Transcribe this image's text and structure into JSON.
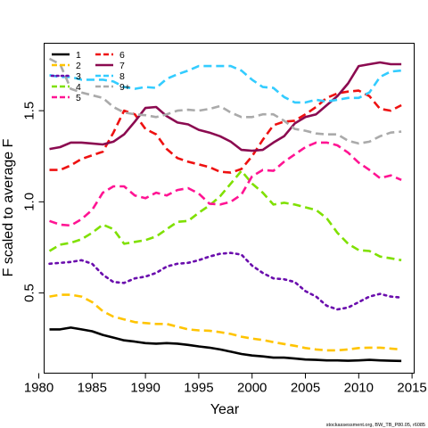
{
  "chart_data": {
    "type": "line",
    "xlabel": "Year",
    "ylabel": "F scaled to average F",
    "xlim": [
      1980.5,
      2015.2
    ],
    "ylim": [
      0.06,
      1.87
    ],
    "x_ticks": [
      1980,
      1985,
      1990,
      1995,
      2000,
      2005,
      2010,
      2015
    ],
    "y_ticks": [
      0.5,
      1.0,
      1.5
    ],
    "y_tick_labels": [
      "0.5",
      "1.0",
      "1.5"
    ],
    "legend_position": "top-left",
    "credit": "stockassessment.org, BW_TB_P80.05, r6085",
    "x": [
      1981,
      1982,
      1983,
      1984,
      1985,
      1986,
      1987,
      1988,
      1989,
      1990,
      1991,
      1992,
      1993,
      1994,
      1995,
      1996,
      1997,
      1998,
      1999,
      2000,
      2001,
      2002,
      2003,
      2004,
      2005,
      2006,
      2007,
      2008,
      2009,
      2010,
      2011,
      2012,
      2013,
      2014
    ],
    "series": [
      {
        "name": "1",
        "color": "#000000",
        "dash": "solid",
        "values": [
          0.3,
          0.3,
          0.31,
          0.3,
          0.29,
          0.27,
          0.255,
          0.24,
          0.233,
          0.225,
          0.222,
          0.225,
          0.222,
          0.215,
          0.207,
          0.2,
          0.19,
          0.178,
          0.165,
          0.157,
          0.152,
          0.145,
          0.145,
          0.14,
          0.135,
          0.133,
          0.13,
          0.13,
          0.128,
          0.13,
          0.133,
          0.13,
          0.128,
          0.127
        ]
      },
      {
        "name": "2",
        "color": "#FFC400",
        "dash": "dashed",
        "values": [
          0.48,
          0.49,
          0.49,
          0.48,
          0.45,
          0.4,
          0.37,
          0.355,
          0.34,
          0.335,
          0.33,
          0.33,
          0.315,
          0.3,
          0.295,
          0.293,
          0.285,
          0.275,
          0.26,
          0.25,
          0.242,
          0.23,
          0.22,
          0.21,
          0.198,
          0.19,
          0.185,
          0.185,
          0.19,
          0.198,
          0.2,
          0.2,
          0.195,
          0.19
        ]
      },
      {
        "name": "3",
        "color": "#6A0DAD",
        "dash": "dotted",
        "values": [
          0.66,
          0.665,
          0.67,
          0.68,
          0.66,
          0.6,
          0.56,
          0.555,
          0.58,
          0.59,
          0.61,
          0.645,
          0.66,
          0.665,
          0.68,
          0.7,
          0.715,
          0.72,
          0.71,
          0.65,
          0.61,
          0.58,
          0.575,
          0.56,
          0.51,
          0.48,
          0.43,
          0.41,
          0.42,
          0.45,
          0.48,
          0.495,
          0.48,
          0.475
        ]
      },
      {
        "name": "4",
        "color": "#7FE000",
        "dash": "dashed",
        "values": [
          0.73,
          0.765,
          0.775,
          0.795,
          0.83,
          0.875,
          0.85,
          0.77,
          0.78,
          0.79,
          0.81,
          0.85,
          0.89,
          0.895,
          0.94,
          0.98,
          1.03,
          1.1,
          1.17,
          1.1,
          1.05,
          0.985,
          0.995,
          0.985,
          0.97,
          0.955,
          0.91,
          0.83,
          0.77,
          0.735,
          0.73,
          0.7,
          0.69,
          0.68
        ]
      },
      {
        "name": "5",
        "color": "#FF1493",
        "dash": "dashed",
        "values": [
          0.895,
          0.875,
          0.87,
          0.905,
          0.955,
          1.05,
          1.085,
          1.085,
          1.035,
          1.02,
          1.05,
          1.035,
          1.065,
          1.075,
          1.045,
          0.99,
          0.985,
          1.0,
          1.04,
          1.14,
          1.175,
          1.17,
          1.22,
          1.26,
          1.3,
          1.325,
          1.325,
          1.31,
          1.27,
          1.215,
          1.175,
          1.13,
          1.145,
          1.12
        ]
      },
      {
        "name": "6",
        "color": "#EE1111",
        "dash": "dashed",
        "values": [
          1.175,
          1.175,
          1.2,
          1.235,
          1.255,
          1.275,
          1.38,
          1.5,
          1.48,
          1.4,
          1.37,
          1.29,
          1.24,
          1.22,
          1.205,
          1.19,
          1.165,
          1.16,
          1.18,
          1.25,
          1.34,
          1.42,
          1.44,
          1.445,
          1.48,
          1.52,
          1.57,
          1.595,
          1.605,
          1.61,
          1.58,
          1.51,
          1.5,
          1.53
        ]
      },
      {
        "name": "7",
        "color": "#8B0A50",
        "dash": "solid",
        "values": [
          1.29,
          1.3,
          1.325,
          1.325,
          1.32,
          1.315,
          1.33,
          1.37,
          1.44,
          1.515,
          1.52,
          1.47,
          1.435,
          1.425,
          1.395,
          1.38,
          1.36,
          1.33,
          1.285,
          1.28,
          1.285,
          1.325,
          1.36,
          1.43,
          1.465,
          1.48,
          1.53,
          1.58,
          1.65,
          1.745,
          1.755,
          1.765,
          1.755,
          1.755
        ]
      },
      {
        "name": "8",
        "color": "#33CCFF",
        "dash": "dashed",
        "values": [
          1.695,
          1.685,
          1.685,
          1.67,
          1.67,
          1.67,
          1.66,
          1.63,
          1.62,
          1.63,
          1.625,
          1.675,
          1.7,
          1.72,
          1.745,
          1.745,
          1.745,
          1.745,
          1.72,
          1.67,
          1.63,
          1.625,
          1.575,
          1.545,
          1.545,
          1.56,
          1.55,
          1.56,
          1.57,
          1.57,
          1.6,
          1.685,
          1.715,
          1.72
        ]
      },
      {
        "name": "9+",
        "color": "#AAAAAA",
        "dash": "dashed",
        "values": [
          1.785,
          1.755,
          1.62,
          1.6,
          1.585,
          1.57,
          1.52,
          1.49,
          1.48,
          1.475,
          1.465,
          1.48,
          1.5,
          1.505,
          1.5,
          1.51,
          1.525,
          1.49,
          1.465,
          1.465,
          1.48,
          1.48,
          1.445,
          1.4,
          1.39,
          1.375,
          1.37,
          1.37,
          1.335,
          1.32,
          1.33,
          1.36,
          1.38,
          1.385
        ]
      }
    ]
  }
}
